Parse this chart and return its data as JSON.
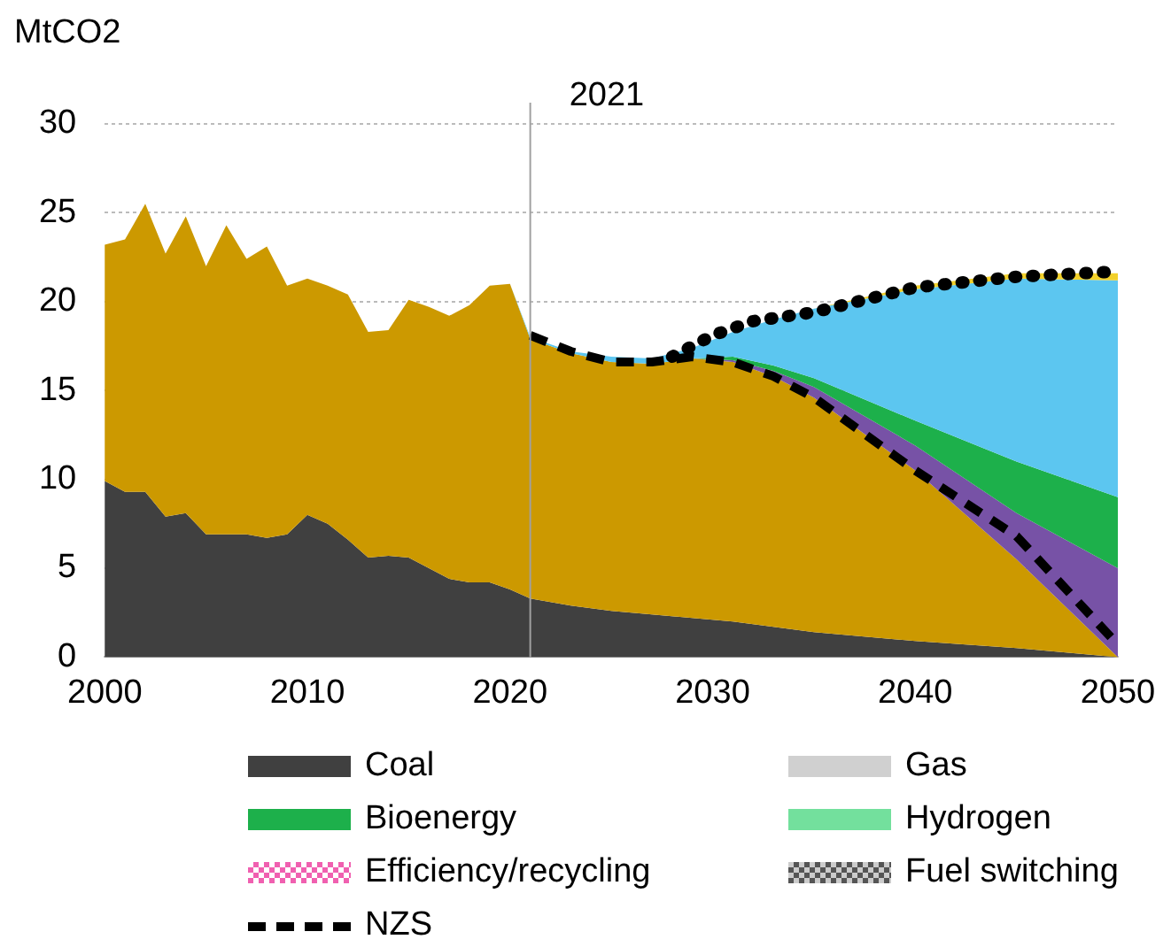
{
  "chart_data": {
    "type": "area",
    "stacked": true,
    "ylabel": "MtCO2",
    "x": [
      2000,
      2001,
      2002,
      2003,
      2004,
      2005,
      2006,
      2007,
      2008,
      2009,
      2010,
      2011,
      2012,
      2013,
      2014,
      2015,
      2016,
      2017,
      2018,
      2019,
      2020,
      2021,
      2023,
      2025,
      2027,
      2029,
      2031,
      2033,
      2035,
      2040,
      2045,
      2050
    ],
    "xlim": [
      2000,
      2050
    ],
    "xticks": [
      2000,
      2010,
      2020,
      2030,
      2040,
      2050
    ],
    "ylim": [
      0,
      30
    ],
    "yticks": [
      0,
      5,
      10,
      15,
      20,
      25,
      30
    ],
    "grid": "y",
    "legend": "bottom",
    "annotations": [
      "Efficiency/recycling",
      "Gas",
      "Hydrogen",
      "Fuel switching"
    ],
    "ref_lines": [
      {
        "axis": "x",
        "value": 2021,
        "label": "2021",
        "color": "#a0a0a0"
      }
    ],
    "series": [
      {
        "name": "Coal",
        "color": "#404040",
        "values": [
          9.9,
          9.3,
          9.3,
          7.9,
          8.1,
          6.9,
          6.9,
          6.9,
          6.7,
          6.9,
          8.0,
          7.5,
          6.6,
          5.6,
          5.7,
          5.6,
          5.0,
          4.4,
          4.2,
          4.2,
          3.8,
          3.3,
          2.9,
          2.6,
          2.4,
          2.2,
          2.0,
          1.7,
          1.4,
          0.9,
          0.5,
          0
        ]
      },
      {
        "color": "#cc9900",
        "values": [
          13.3,
          14.2,
          16.2,
          14.8,
          16.7,
          15.1,
          17.4,
          15.5,
          16.4,
          14.0,
          13.3,
          13.4,
          13.8,
          12.7,
          12.7,
          14.5,
          14.7,
          14.8,
          15.6,
          16.7,
          17.2,
          14.6,
          14.2,
          14.0,
          14.1,
          14.6,
          14.6,
          14.1,
          13.2,
          9.6,
          5.0,
          0
        ]
      },
      {
        "color": "#7752a6",
        "values": [
          null,
          null,
          null,
          null,
          null,
          null,
          null,
          null,
          null,
          null,
          null,
          null,
          null,
          null,
          null,
          null,
          null,
          null,
          null,
          null,
          null,
          null,
          null,
          null,
          null,
          0,
          0.1,
          0.3,
          0.6,
          1.4,
          2.6,
          5.0
        ]
      },
      {
        "name": "Bioenergy",
        "color": "#1db04b",
        "values": [
          null,
          null,
          null,
          null,
          null,
          null,
          null,
          null,
          null,
          null,
          null,
          null,
          null,
          null,
          null,
          null,
          null,
          null,
          null,
          null,
          null,
          null,
          null,
          null,
          null,
          0,
          0.2,
          0.3,
          0.5,
          1.4,
          2.9,
          4.0
        ]
      },
      {
        "color": "#5cc6f0",
        "values": [
          null,
          null,
          null,
          null,
          null,
          null,
          null,
          null,
          null,
          null,
          null,
          null,
          null,
          null,
          null,
          null,
          null,
          null,
          null,
          null,
          0,
          0.1,
          0.1,
          0.3,
          0.3,
          0.6,
          1.4,
          2.6,
          3.9,
          7.4,
          10.3,
          12.2
        ]
      },
      {
        "color": "#f2d02a",
        "values": [
          null,
          null,
          null,
          null,
          null,
          null,
          null,
          null,
          null,
          null,
          null,
          null,
          null,
          null,
          null,
          null,
          null,
          null,
          null,
          null,
          null,
          null,
          null,
          null,
          null,
          null,
          null,
          null,
          0,
          0.2,
          0.3,
          0.4
        ]
      },
      {
        "name": "NZS",
        "type": "line",
        "line_style": "dashed",
        "color": "#000000",
        "x": [
          2021,
          2023,
          2025,
          2027,
          2029,
          2031,
          2033,
          2035,
          2040,
          2045,
          2050
        ],
        "values": [
          18.1,
          17.2,
          16.6,
          16.6,
          16.9,
          16.6,
          15.8,
          14.6,
          10.5,
          6.8,
          0.7
        ]
      },
      {
        "type": "line",
        "line_style": "dotted",
        "color": "#000000",
        "x": [
          2028,
          2030,
          2032,
          2035,
          2040,
          2045,
          2050
        ],
        "values": [
          16.9,
          18.1,
          18.9,
          19.4,
          20.8,
          21.4,
          21.7
        ]
      }
    ]
  }
}
